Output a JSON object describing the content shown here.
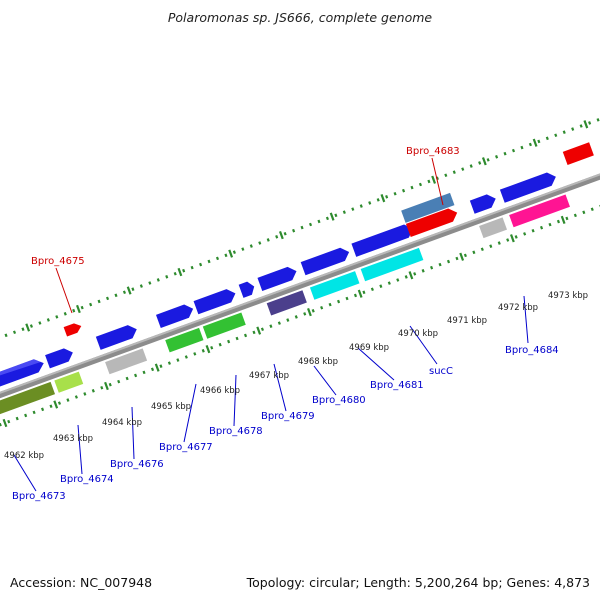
{
  "title": "Polaromonas sp. JS666, complete genome",
  "footer": {
    "accession": "Accession: NC_007948",
    "summary": "Topology: circular; Length: 5,200,264 bp; Genes: 4,873"
  },
  "colors": {
    "backbone": "#8c8c8c",
    "tick": "#2e8b2e",
    "highlight_label": "#cc0000",
    "gene_label": "#0000cc",
    "kbp_label": "#222222"
  },
  "kbp_labels": [
    "4962 kbp",
    "4963 kbp",
    "4964 kbp",
    "4965 kbp",
    "4966 kbp",
    "4967 kbp",
    "4968 kbp",
    "4969 kbp",
    "4970 kbp",
    "4971 kbp",
    "4972 kbp",
    "4973 kbp"
  ],
  "gene_labels": [
    {
      "text": "Bpro_4683",
      "type": "highlight"
    },
    {
      "text": "Bpro_4675",
      "type": "highlight"
    },
    {
      "text": "Bpro_4673",
      "type": "gene"
    },
    {
      "text": "Bpro_4674",
      "type": "gene"
    },
    {
      "text": "Bpro_4676",
      "type": "gene"
    },
    {
      "text": "Bpro_4677",
      "type": "gene"
    },
    {
      "text": "Bpro_4678",
      "type": "gene"
    },
    {
      "text": "Bpro_4679",
      "type": "gene"
    },
    {
      "text": "Bpro_4680",
      "type": "gene"
    },
    {
      "text": "Bpro_4681",
      "type": "gene"
    },
    {
      "text": "sucC",
      "type": "gene"
    },
    {
      "text": "Bpro_4684",
      "type": "gene"
    }
  ]
}
